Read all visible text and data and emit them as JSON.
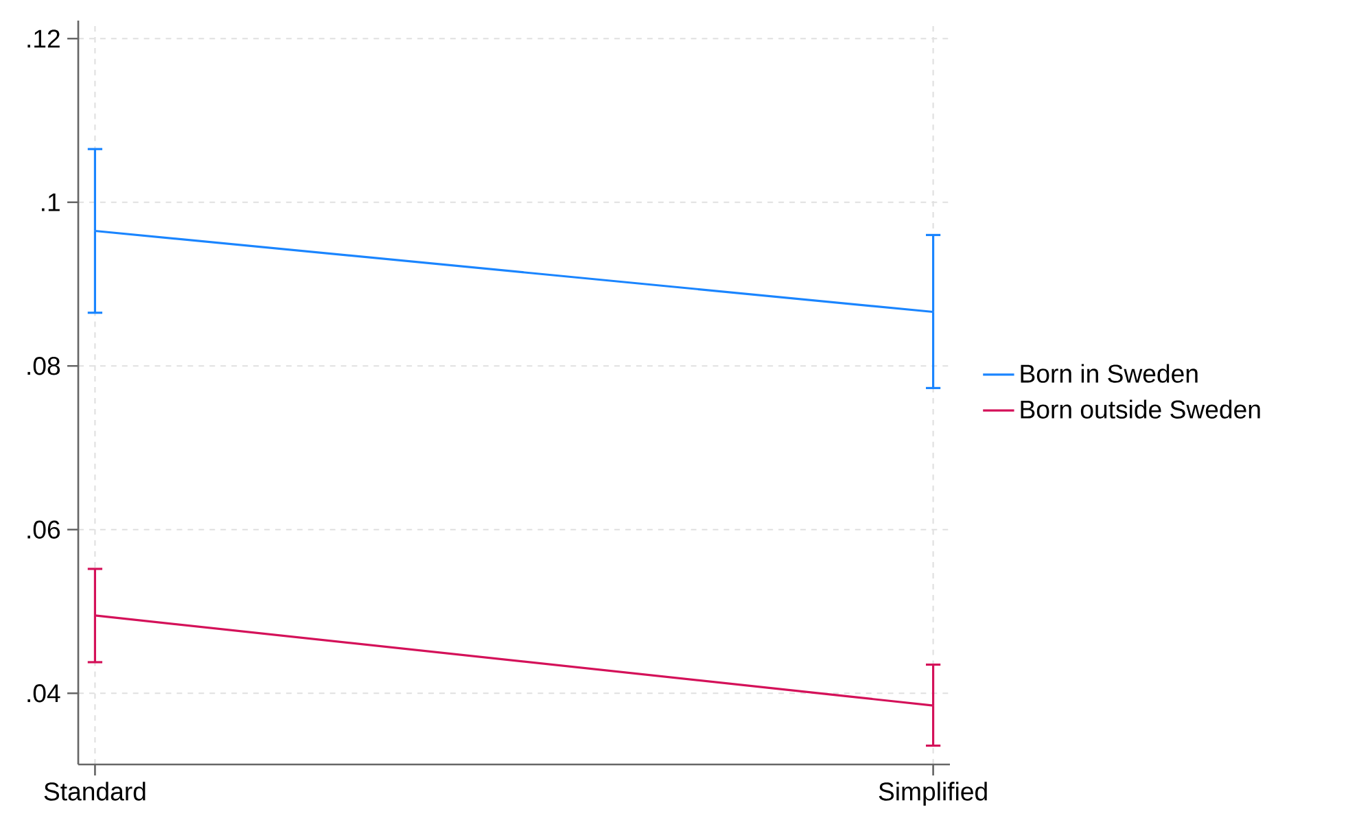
{
  "chart_data": {
    "type": "line",
    "categories": [
      "Standard",
      "Simplified"
    ],
    "series": [
      {
        "name": "Born in Sweden",
        "color": "#1a85ff",
        "values": [
          0.0965,
          0.0866
        ],
        "errors": [
          [
            0.0865,
            0.1065
          ],
          [
            0.0773,
            0.096
          ]
        ]
      },
      {
        "name": "Born outside Sweden",
        "color": "#d41159",
        "values": [
          0.0495,
          0.0385
        ],
        "errors": [
          [
            0.0438,
            0.0552
          ],
          [
            0.0336,
            0.0435
          ]
        ]
      }
    ],
    "ylim": [
      0.0313,
      0.1222
    ],
    "yticks": [
      {
        "value": 0.04,
        "label": ".04"
      },
      {
        "value": 0.06,
        "label": ".06"
      },
      {
        "value": 0.08,
        "label": ".08"
      },
      {
        "value": 0.1,
        "label": ".1"
      },
      {
        "value": 0.12,
        "label": ".12"
      }
    ],
    "grid": true,
    "legend": "right",
    "marker": "none",
    "line_style": "solid"
  }
}
